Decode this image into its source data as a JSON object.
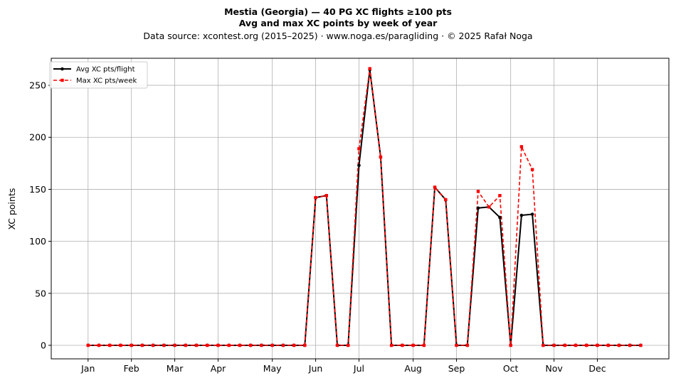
{
  "chart_data": {
    "type": "line",
    "title": [
      "Mestia (Georgia)  —  40 PG XC flights ≥100 pts",
      "Avg and max XC points by week of year"
    ],
    "subtitle": "Data source: xcontest.org (2015–2025)  ·  www.noga.es/paragliding  ·  © 2025 Rafał Noga",
    "xlabel": "",
    "ylabel": "XC points",
    "ylim": [
      -13,
      276
    ],
    "yticks": [
      0,
      50,
      100,
      150,
      200,
      250
    ],
    "xlim": [
      -2.4,
      54.6
    ],
    "xticks": [
      {
        "label": "Jan",
        "week": 1
      },
      {
        "label": "Feb",
        "week": 5
      },
      {
        "label": "Mar",
        "week": 9
      },
      {
        "label": "Apr",
        "week": 13
      },
      {
        "label": "May",
        "week": 18
      },
      {
        "label": "Jun",
        "week": 22
      },
      {
        "label": "Jul",
        "week": 26
      },
      {
        "label": "Aug",
        "week": 31
      },
      {
        "label": "Sep",
        "week": 35
      },
      {
        "label": "Oct",
        "week": 40
      },
      {
        "label": "Nov",
        "week": 44
      },
      {
        "label": "Dec",
        "week": 48
      }
    ],
    "grid": true,
    "legend_position": "top-left",
    "x": [
      1,
      2,
      3,
      4,
      5,
      6,
      7,
      8,
      9,
      10,
      11,
      12,
      13,
      14,
      15,
      16,
      17,
      18,
      19,
      20,
      21,
      22,
      23,
      24,
      25,
      26,
      27,
      28,
      29,
      30,
      31,
      32,
      33,
      34,
      35,
      36,
      37,
      38,
      39,
      40,
      41,
      42,
      43,
      44,
      45,
      46,
      47,
      48,
      49,
      50,
      51,
      52
    ],
    "series": [
      {
        "name": "Avg XC pts/flight",
        "color": "#000000",
        "style": "solid-circle",
        "values": [
          0,
          0,
          0,
          0,
          0,
          0,
          0,
          0,
          0,
          0,
          0,
          0,
          0,
          0,
          0,
          0,
          0,
          0,
          0,
          0,
          0,
          142,
          144,
          0,
          0,
          173,
          265,
          181,
          0,
          0,
          0,
          0,
          152,
          140,
          0,
          0,
          132,
          133,
          123,
          0,
          125,
          126,
          0,
          0,
          0,
          0,
          0,
          0,
          0,
          0,
          0,
          0
        ]
      },
      {
        "name": "Max XC pts/week",
        "color": "#ff0000",
        "style": "dashed-square",
        "values": [
          0,
          0,
          0,
          0,
          0,
          0,
          0,
          0,
          0,
          0,
          0,
          0,
          0,
          0,
          0,
          0,
          0,
          0,
          0,
          0,
          0,
          142,
          144,
          0,
          0,
          189,
          266,
          181,
          0,
          0,
          0,
          0,
          152,
          140,
          0,
          0,
          148,
          133,
          144,
          0,
          191,
          169,
          0,
          0,
          0,
          0,
          0,
          0,
          0,
          0,
          0,
          0
        ]
      }
    ]
  }
}
